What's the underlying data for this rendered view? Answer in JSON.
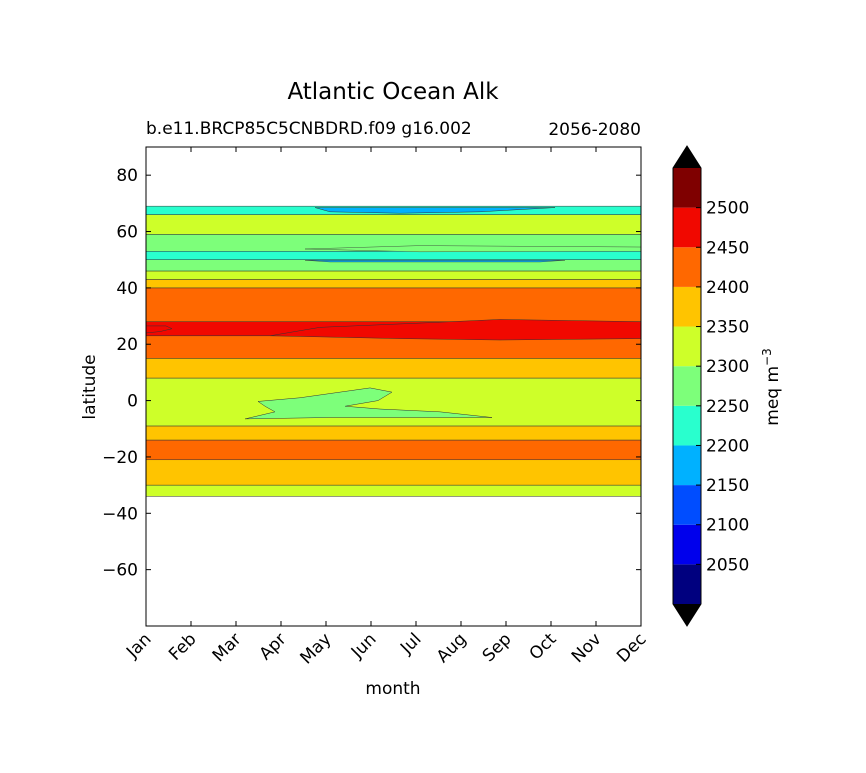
{
  "chart_data": {
    "type": "contour",
    "title": "Atlantic Ocean Alk",
    "subtitle_left": "b.e11.BRCP85C5CNBDRD.f09 g16.002",
    "subtitle_right": "2056-2080",
    "xlabel": "month",
    "ylabel": "latitude",
    "x_categories": [
      "Jan",
      "Feb",
      "Mar",
      "Apr",
      "May",
      "Jun",
      "Jul",
      "Aug",
      "Sep",
      "Oct",
      "Nov",
      "Dec"
    ],
    "ylim": [
      -80,
      90
    ],
    "y_ticks": [
      80,
      60,
      40,
      20,
      0,
      -20,
      -40,
      -60
    ],
    "y_tick_labels": [
      "80",
      "60",
      "40",
      "20",
      "0",
      "−20",
      "−40",
      "−60"
    ],
    "data_lat_range": [
      -34,
      69
    ],
    "colorbar": {
      "label": "meq m",
      "label_superscript": "−3",
      "levels": [
        2000,
        2050,
        2100,
        2150,
        2200,
        2250,
        2300,
        2350,
        2400,
        2450,
        2500,
        2550
      ],
      "tick_values": [
        2050,
        2100,
        2150,
        2200,
        2250,
        2300,
        2350,
        2400,
        2450,
        2500
      ],
      "tick_labels": [
        "2050",
        "2100",
        "2150",
        "2200",
        "2250",
        "2300",
        "2350",
        "2400",
        "2450",
        "2500"
      ],
      "colors": [
        "#00007f",
        "#0000ec",
        "#004dff",
        "#00b1ff",
        "#29ffce",
        "#7dff7a",
        "#ceff29",
        "#ffc400",
        "#ff6800",
        "#f10800",
        "#7f0000"
      ],
      "under_color": "#000000",
      "over_color": "#000000",
      "extend": "both"
    },
    "bands": [
      {
        "lat_bottom": -34,
        "lat_top": -30,
        "level_index": 6
      },
      {
        "lat_bottom": -30,
        "lat_top": -21,
        "level_index": 7
      },
      {
        "lat_bottom": -21,
        "lat_top": -14,
        "level_index": 8
      },
      {
        "lat_bottom": -14,
        "lat_top": -9,
        "level_index": 7
      },
      {
        "lat_bottom": -9,
        "lat_top": 8,
        "level_index": 6
      },
      {
        "lat_bottom": 8,
        "lat_top": 15,
        "level_index": 7
      },
      {
        "lat_bottom": 15,
        "lat_top": 23,
        "level_index": 8
      },
      {
        "lat_bottom": 23,
        "lat_top": 28,
        "level_index": 9
      },
      {
        "lat_bottom": 28,
        "lat_top": 40,
        "level_index": 8
      },
      {
        "lat_bottom": 40,
        "lat_top": 43,
        "level_index": 7
      },
      {
        "lat_bottom": 43,
        "lat_top": 46,
        "level_index": 6
      },
      {
        "lat_bottom": 46,
        "lat_top": 50,
        "level_index": 5
      },
      {
        "lat_bottom": 50,
        "lat_top": 53,
        "level_index": 4
      },
      {
        "lat_bottom": 53,
        "lat_top": 59,
        "level_index": 5
      },
      {
        "lat_bottom": 59,
        "lat_top": 66,
        "level_index": 6
      },
      {
        "lat_bottom": 66,
        "lat_top": 69,
        "level_index": 4
      }
    ]
  }
}
